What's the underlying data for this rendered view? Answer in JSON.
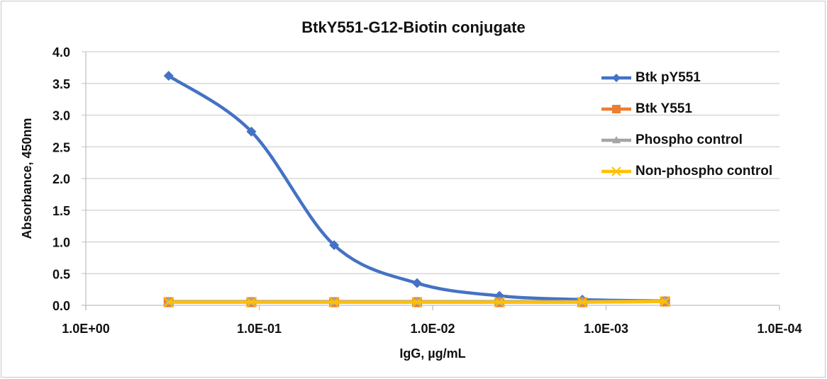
{
  "chart_data": {
    "type": "line",
    "title": "BtkY551-G12-Biotin conjugate",
    "xlabel": "IgG, µg/mL",
    "ylabel": "Absorbance, 450nm",
    "x_scale": "log",
    "x_reversed": true,
    "xlim": [
      1.0,
      0.0001
    ],
    "ylim": [
      0,
      4.0
    ],
    "x_tick_labels": [
      "1.0E+00",
      "1.0E-01",
      "1.0E-02",
      "1.0E-03",
      "1.0E-04"
    ],
    "y_tick_labels": [
      "0.0",
      "0.5",
      "1.0",
      "1.5",
      "2.0",
      "2.5",
      "3.0",
      "3.5",
      "4.0"
    ],
    "grid": "horizontal",
    "legend_position": "right",
    "x": [
      0.333,
      0.111,
      0.037,
      0.0123,
      0.00412,
      0.00137,
      0.000457
    ],
    "series": [
      {
        "name": "Btk pY551",
        "color": "#4472C4",
        "marker": "diamond",
        "values": [
          3.62,
          2.74,
          0.95,
          0.35,
          0.15,
          0.09,
          0.07
        ]
      },
      {
        "name": "Btk Y551",
        "color": "#ED7D31",
        "marker": "square",
        "values": [
          0.05,
          0.05,
          0.05,
          0.05,
          0.05,
          0.05,
          0.06
        ]
      },
      {
        "name": "Phospho control",
        "color": "#A5A5A5",
        "marker": "triangle",
        "values": [
          0.06,
          0.06,
          0.06,
          0.06,
          0.06,
          0.06,
          0.07
        ]
      },
      {
        "name": "Non-phospho control",
        "color": "#FFC000",
        "marker": "x",
        "values": [
          0.05,
          0.05,
          0.05,
          0.05,
          0.05,
          0.05,
          0.06
        ]
      }
    ]
  }
}
